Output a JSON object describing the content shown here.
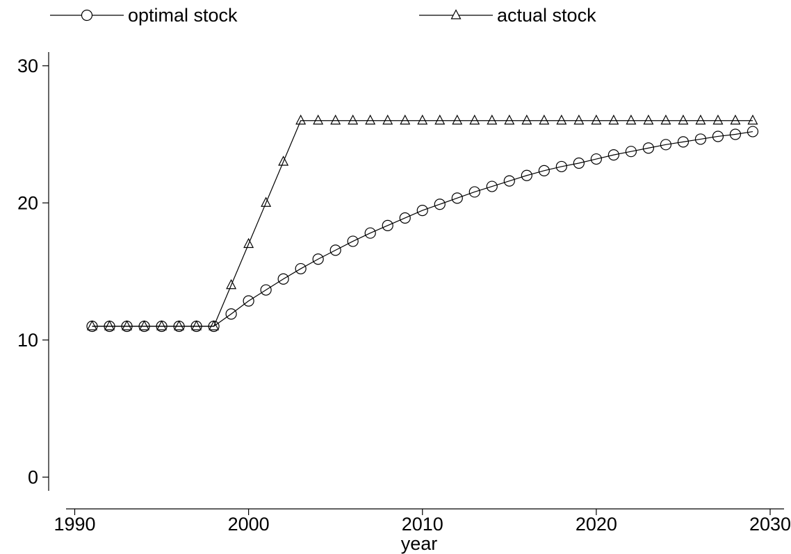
{
  "chart_data": {
    "type": "line",
    "xlabel": "year",
    "ylabel": "",
    "xlim": [
      1989.5,
      2030.8
    ],
    "ylim": [
      -1,
      31
    ],
    "x_ticks": [
      1990,
      2000,
      2010,
      2020,
      2030
    ],
    "y_ticks": [
      0,
      10,
      20,
      30
    ],
    "grid": false,
    "legend_position": "top",
    "x": [
      1991,
      1992,
      1993,
      1994,
      1995,
      1996,
      1997,
      1998,
      1999,
      2000,
      2001,
      2002,
      2003,
      2004,
      2005,
      2006,
      2007,
      2008,
      2009,
      2010,
      2011,
      2012,
      2013,
      2014,
      2015,
      2016,
      2017,
      2018,
      2019,
      2020,
      2021,
      2022,
      2023,
      2024,
      2025,
      2026,
      2027,
      2028,
      2029
    ],
    "series": [
      {
        "name": "optimal stock",
        "marker": "circle",
        "color": "#000000",
        "values": [
          11,
          11,
          11,
          11,
          11,
          11,
          11,
          11,
          11.9,
          12.85,
          13.65,
          14.45,
          15.2,
          15.9,
          16.55,
          17.2,
          17.8,
          18.35,
          18.9,
          19.45,
          19.9,
          20.35,
          20.8,
          21.2,
          21.6,
          22.0,
          22.35,
          22.65,
          22.9,
          23.2,
          23.5,
          23.75,
          24.0,
          24.25,
          24.45,
          24.65,
          24.85,
          25.0,
          25.2
        ]
      },
      {
        "name": "actual stock",
        "marker": "triangle",
        "color": "#000000",
        "values": [
          11,
          11,
          11,
          11,
          11,
          11,
          11,
          11,
          14,
          17,
          20,
          23,
          26,
          26,
          26,
          26,
          26,
          26,
          26,
          26,
          26,
          26,
          26,
          26,
          26,
          26,
          26,
          26,
          26,
          26,
          26,
          26,
          26,
          26,
          26,
          26,
          26,
          26,
          26
        ]
      }
    ]
  }
}
